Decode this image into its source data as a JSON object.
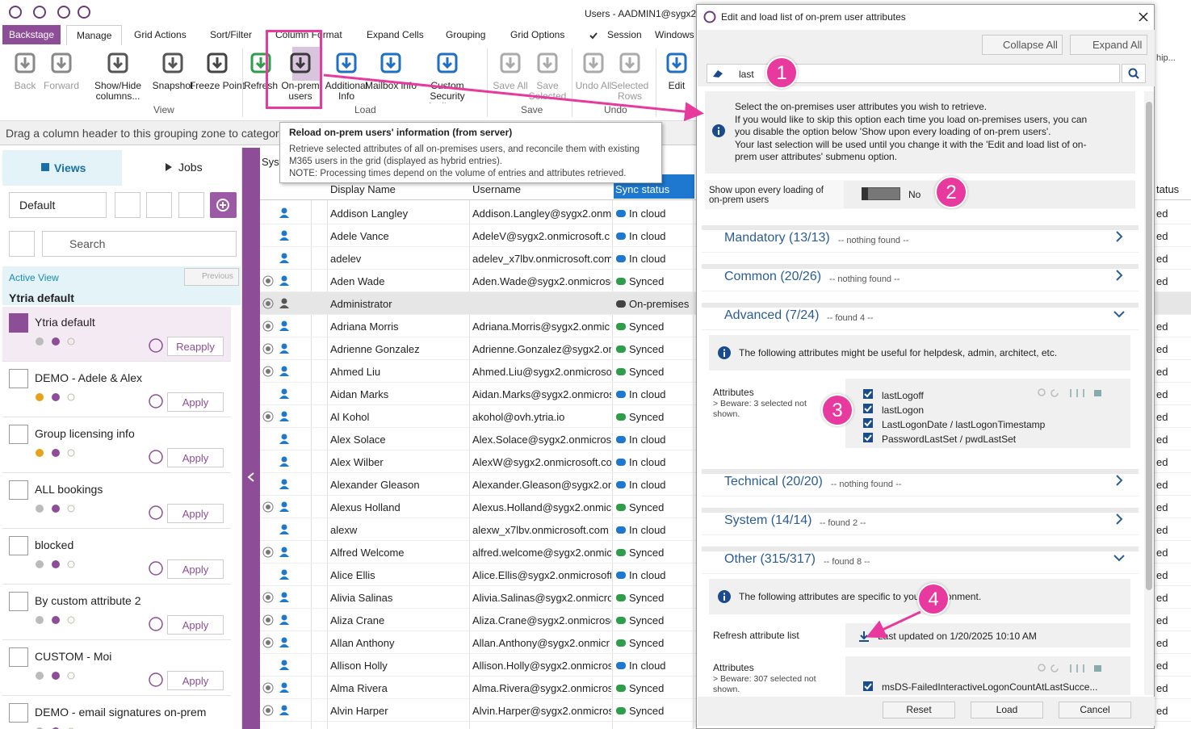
{
  "titlebar": {
    "title": "Users - AADMIN1@sygx2.c"
  },
  "tabs": [
    "Backstage",
    "Manage",
    "Grid Actions",
    "Sort/Filter",
    "Column Format",
    "Expand Cells",
    "Grouping",
    "Grid Options",
    "Session",
    "Windows"
  ],
  "ribbon": {
    "buttons": [
      "Back",
      "Forward",
      "Show/Hide columns...",
      "Snapshot",
      "Freeze Point",
      "Refresh",
      "On-prem users",
      "Additional Info",
      "Mailbox info",
      "Custom Security Attributes",
      "Save All",
      "Save Selected",
      "Undo All",
      "Selected Rows",
      "Edit"
    ],
    "groups": [
      "View",
      "Load",
      "Save",
      "Undo"
    ],
    "right_fragment": "hip..."
  },
  "grouping_zone": "Drag a column header to this grouping zone to categorize",
  "tooltip": {
    "title": "Reload on-prem users' information (from server)",
    "lines": [
      "Retrieve selected attributes of all on-premises users, and reconcile them with existing",
      "M365 users in the grid (displayed as hybrid entries).",
      "NOTE: Processing times depend on the volume of entries and attributes retrieved."
    ]
  },
  "left_panel": {
    "tabs": [
      "Views",
      "Jobs"
    ],
    "dropdown": "Default",
    "search": "Search",
    "active_view_label": "Active View",
    "previous": "Previous",
    "active_view": "Ytria default",
    "views": [
      {
        "name": "Ytria default",
        "button": "Reapply"
      },
      {
        "name": "DEMO - Adele & Alex",
        "button": "Apply"
      },
      {
        "name": "Group licensing info",
        "button": "Apply"
      },
      {
        "name": "ALL bookings",
        "button": "Apply"
      },
      {
        "name": "blocked",
        "button": "Apply"
      },
      {
        "name": "By custom attribute 2",
        "button": "Apply"
      },
      {
        "name": "CUSTOM - Moi",
        "button": "Apply"
      },
      {
        "name": "DEMO - email signatures on-prem",
        "button": null
      }
    ]
  },
  "grid": {
    "group_fragment": "Syst",
    "columns": [
      "Display Name",
      "Username",
      "Sync status"
    ],
    "right_header": "tatus",
    "rows": [
      [
        "Addison Langley",
        "Addison.Langley@sygx2.onmi",
        "In cloud",
        "ed"
      ],
      [
        "Adele Vance",
        "AdeleV@sygx2.onmicrosoft.c",
        "In cloud",
        "ed"
      ],
      [
        "adelev",
        "adelev_x7lbv.onmicrosoft.com",
        "In cloud",
        "ed"
      ],
      [
        "Aden Wade",
        "Aden.Wade@sygx2.onmicroso",
        "Synced",
        "ed"
      ],
      [
        "Administrator",
        null,
        "On-premises",
        null
      ],
      [
        "Adriana Morris",
        "Adriana.Morris@sygx2.onmic",
        "Synced",
        "ed"
      ],
      [
        "Adrienne Gonzalez",
        "Adrienne.Gonzalez@sygx2.on",
        "Synced",
        "ed"
      ],
      [
        "Ahmed Liu",
        "Ahmed.Liu@sygx2.onmicroso",
        "Synced",
        "ed"
      ],
      [
        "Aidan Marks",
        "Aidan.Marks@sygx2.onmicros",
        "In cloud",
        "ed"
      ],
      [
        "Al Kohol",
        "akohol@ovh.ytria.io",
        "Synced",
        "ed"
      ],
      [
        "Alex Solace",
        "Alex.Solace@sygx2.onmicroso",
        "In cloud",
        "ed"
      ],
      [
        "Alex Wilber",
        "AlexW@sygx2.onmicrosoft.co",
        "In cloud",
        "ed"
      ],
      [
        "Alexander Gleason",
        "Alexander.Gleason@sygx2.on",
        "In cloud",
        "ed"
      ],
      [
        "Alexus Holland",
        "Alexus.Holland@sygx2.onmicr",
        "Synced",
        "ed"
      ],
      [
        "alexw",
        "alexw_x7lbv.onmicrosoft.com",
        "In cloud",
        "ed"
      ],
      [
        "Alfred Welcome",
        "alfred.welcome@sygx2.onmic",
        "Synced",
        "ed"
      ],
      [
        "Alice Ellis",
        "Alice.Ellis@sygx2.onmicrosoft",
        "In cloud",
        "ed"
      ],
      [
        "Alivia Salinas",
        "Alivia.Salinas@sygx2.onmicro",
        "Synced",
        "ed"
      ],
      [
        "Aliza Crane",
        "Aliza.Crane@sygx2.onmicrosc",
        "Synced",
        "ed"
      ],
      [
        "Allan Anthony",
        "Allan.Anthony@sygx2.onmicr",
        "Synced",
        "ed"
      ],
      [
        "Allison Holly",
        "Allison.Holly@sygx2.onmicros",
        "In cloud",
        "ed"
      ],
      [
        "Alma Rivera",
        "Alma.Rivera@sygx2.onmicros",
        "Synced",
        "ed"
      ],
      [
        "Alvin Harper",
        "Alvin.Harper@sygx2.onmicros",
        "Synced",
        "ed"
      ]
    ]
  },
  "dialog": {
    "title": "Edit and load list of on-prem user attributes",
    "collapse_all": "Collapse All",
    "expand_all": "Expand All",
    "search_value": "last",
    "info_lines": [
      "Select the on-premises user attributes you wish to retrieve.",
      "If you would like to skip this option each time you load on-premises users, you can",
      "you disable the option below 'Show upon every loading of on-prem users'.",
      "Your last selection will be used until you change it with the 'Edit and load list of on-",
      "prem user attributes' submenu option."
    ],
    "toggle_label": [
      "Show upon every loading of",
      "on-prem users"
    ],
    "toggle_value": "No",
    "sections": [
      {
        "title": "Mandatory (13/13)",
        "status": "-- nothing found --"
      },
      {
        "title": "Common (20/26)",
        "status": "-- nothing found --"
      },
      {
        "title": "Advanced (7/24)",
        "status": "-- found 4 --"
      },
      {
        "title": "Technical (20/20)",
        "status": "-- nothing found --"
      },
      {
        "title": "System (14/14)",
        "status": "-- found 2 --"
      },
      {
        "title": "Other (315/317)",
        "status": "-- found 8 --"
      }
    ],
    "advanced": {
      "info": "The following attributes might be useful for helpdesk, admin, architect, etc.",
      "attributes_label": "Attributes",
      "beware": [
        "> Beware: 3 selected not",
        "shown."
      ],
      "checked": [
        "lastLogoff",
        "lastLogon",
        "LastLogonDate / lastLogonTimestamp",
        "PasswordLastSet / pwdLastSet"
      ]
    },
    "other": {
      "info": "The following attributes are specific to your environment.",
      "refresh_label": "Refresh attribute list",
      "last_updated": "Last updated on 1/20/2025 10:10 AM",
      "attributes_label": "Attributes",
      "beware": [
        "> Beware: 307 selected not",
        "shown."
      ],
      "checked": [
        "msDS-FailedInteractiveLogonCountAtLastSucce..."
      ]
    },
    "buttons": [
      "Reset",
      "Load",
      "Cancel"
    ]
  },
  "callouts": [
    "1",
    "2",
    "3",
    "4"
  ]
}
